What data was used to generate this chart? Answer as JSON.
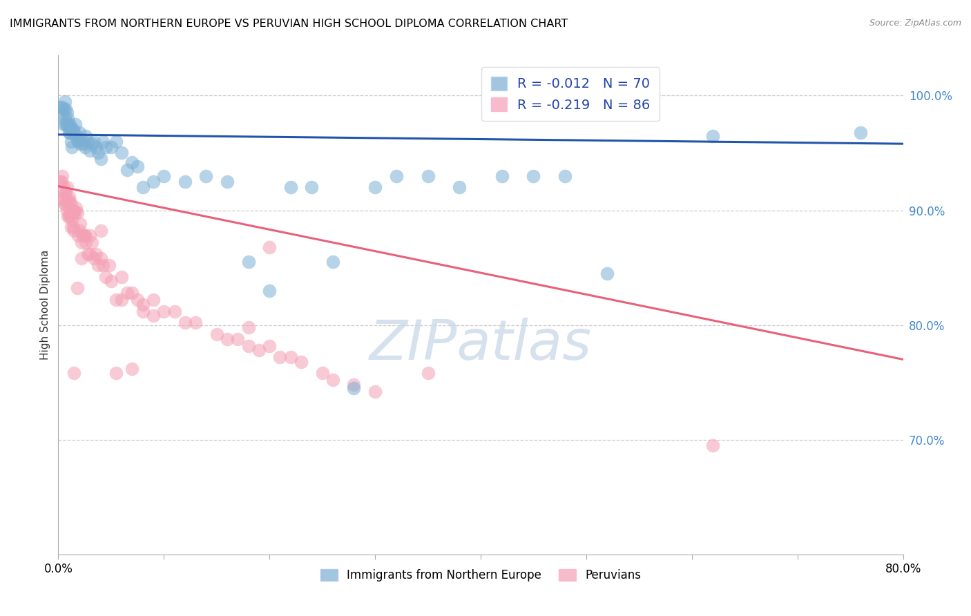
{
  "title": "IMMIGRANTS FROM NORTHERN EUROPE VS PERUVIAN HIGH SCHOOL DIPLOMA CORRELATION CHART",
  "source": "Source: ZipAtlas.com",
  "legend_blue_label": "Immigrants from Northern Europe",
  "legend_pink_label": "Peruvians",
  "r_blue": -0.012,
  "n_blue": 70,
  "r_pink": -0.219,
  "n_pink": 86,
  "blue_color": "#7BAFD4",
  "pink_color": "#F4A0B5",
  "blue_line_color": "#2255AA",
  "pink_line_color": "#E8607A",
  "watermark": "ZIPatlas",
  "watermark_color": "#C5D5E8",
  "blue_x": [
    0.002,
    0.003,
    0.004,
    0.005,
    0.005,
    0.006,
    0.006,
    0.007,
    0.007,
    0.008,
    0.008,
    0.009,
    0.009,
    0.01,
    0.01,
    0.011,
    0.011,
    0.012,
    0.012,
    0.013,
    0.013,
    0.014,
    0.015,
    0.016,
    0.017,
    0.018,
    0.019,
    0.02,
    0.021,
    0.022,
    0.024,
    0.025,
    0.026,
    0.028,
    0.03,
    0.032,
    0.034,
    0.036,
    0.038,
    0.04,
    0.042,
    0.045,
    0.05,
    0.055,
    0.06,
    0.065,
    0.07,
    0.075,
    0.08,
    0.09,
    0.1,
    0.12,
    0.14,
    0.16,
    0.18,
    0.2,
    0.22,
    0.24,
    0.26,
    0.28,
    0.3,
    0.32,
    0.35,
    0.38,
    0.42,
    0.45,
    0.48,
    0.52,
    0.62,
    0.76
  ],
  "blue_y": [
    0.99,
    0.985,
    0.99,
    0.988,
    0.975,
    0.98,
    0.995,
    0.988,
    0.975,
    0.985,
    0.975,
    0.98,
    0.975,
    0.972,
    0.968,
    0.975,
    0.968,
    0.972,
    0.96,
    0.968,
    0.955,
    0.97,
    0.968,
    0.975,
    0.965,
    0.962,
    0.96,
    0.968,
    0.958,
    0.962,
    0.958,
    0.955,
    0.965,
    0.96,
    0.952,
    0.958,
    0.96,
    0.955,
    0.95,
    0.945,
    0.96,
    0.955,
    0.955,
    0.96,
    0.95,
    0.935,
    0.942,
    0.938,
    0.92,
    0.925,
    0.93,
    0.925,
    0.93,
    0.925,
    0.855,
    0.83,
    0.92,
    0.92,
    0.855,
    0.745,
    0.92,
    0.93,
    0.93,
    0.92,
    0.93,
    0.93,
    0.93,
    0.845,
    0.965,
    0.968
  ],
  "pink_x": [
    0.002,
    0.003,
    0.004,
    0.004,
    0.005,
    0.005,
    0.006,
    0.006,
    0.007,
    0.007,
    0.008,
    0.008,
    0.009,
    0.009,
    0.01,
    0.01,
    0.011,
    0.011,
    0.012,
    0.012,
    0.013,
    0.013,
    0.014,
    0.014,
    0.015,
    0.015,
    0.016,
    0.017,
    0.018,
    0.019,
    0.02,
    0.021,
    0.022,
    0.023,
    0.025,
    0.026,
    0.028,
    0.03,
    0.032,
    0.034,
    0.036,
    0.038,
    0.04,
    0.042,
    0.045,
    0.048,
    0.05,
    0.055,
    0.06,
    0.065,
    0.07,
    0.075,
    0.08,
    0.09,
    0.1,
    0.11,
    0.12,
    0.13,
    0.15,
    0.16,
    0.17,
    0.18,
    0.19,
    0.2,
    0.21,
    0.22,
    0.23,
    0.25,
    0.26,
    0.28,
    0.3,
    0.015,
    0.018,
    0.022,
    0.025,
    0.03,
    0.04,
    0.18,
    0.2,
    0.35,
    0.055,
    0.06,
    0.07,
    0.08,
    0.09,
    0.62
  ],
  "pink_y": [
    0.925,
    0.925,
    0.93,
    0.91,
    0.92,
    0.91,
    0.915,
    0.905,
    0.915,
    0.905,
    0.92,
    0.9,
    0.908,
    0.895,
    0.912,
    0.895,
    0.908,
    0.895,
    0.905,
    0.885,
    0.9,
    0.892,
    0.898,
    0.885,
    0.9,
    0.882,
    0.898,
    0.902,
    0.898,
    0.878,
    0.882,
    0.888,
    0.872,
    0.878,
    0.878,
    0.872,
    0.862,
    0.878,
    0.872,
    0.858,
    0.862,
    0.852,
    0.858,
    0.852,
    0.842,
    0.852,
    0.838,
    0.822,
    0.842,
    0.828,
    0.828,
    0.822,
    0.818,
    0.822,
    0.812,
    0.812,
    0.802,
    0.802,
    0.792,
    0.788,
    0.788,
    0.782,
    0.778,
    0.782,
    0.772,
    0.772,
    0.768,
    0.758,
    0.752,
    0.748,
    0.742,
    0.758,
    0.832,
    0.858,
    0.878,
    0.862,
    0.882,
    0.798,
    0.868,
    0.758,
    0.758,
    0.822,
    0.762,
    0.812,
    0.808,
    0.695
  ],
  "blue_trend_x": [
    0.0,
    0.8
  ],
  "blue_trend_y": [
    0.966,
    0.958
  ],
  "pink_trend_x": [
    0.0,
    0.8
  ],
  "pink_trend_y": [
    0.921,
    0.77
  ],
  "xmin": 0.0,
  "xmax": 0.8,
  "ymin": 0.6,
  "ymax": 1.035
}
